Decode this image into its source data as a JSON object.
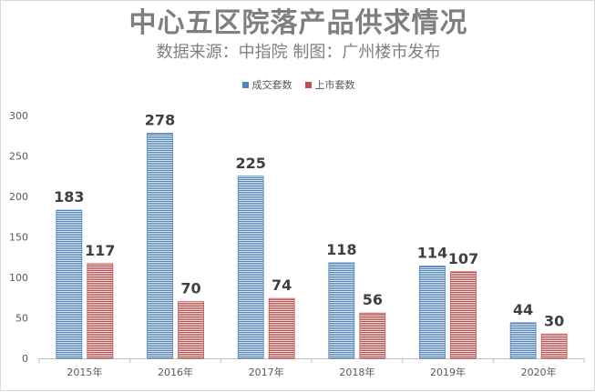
{
  "chart_data": {
    "type": "bar",
    "title": "中心五区院落产品供求情况",
    "subtitle": "数据来源：中指院 制图：广州楼市发布",
    "categories": [
      "2015年",
      "2016年",
      "2017年",
      "2018年",
      "2019年",
      "2020年"
    ],
    "series": [
      {
        "name": "成交套数",
        "color": "#4f81bd",
        "values": [
          183,
          278,
          225,
          118,
          114,
          44
        ]
      },
      {
        "name": "上市套数",
        "color": "#c0504d",
        "values": [
          117,
          70,
          74,
          56,
          107,
          30
        ]
      }
    ],
    "ylim": [
      0,
      300
    ],
    "yticks": [
      "0",
      "50",
      "100",
      "150",
      "200",
      "250",
      "300"
    ],
    "legend_position": "top",
    "grid": false
  }
}
